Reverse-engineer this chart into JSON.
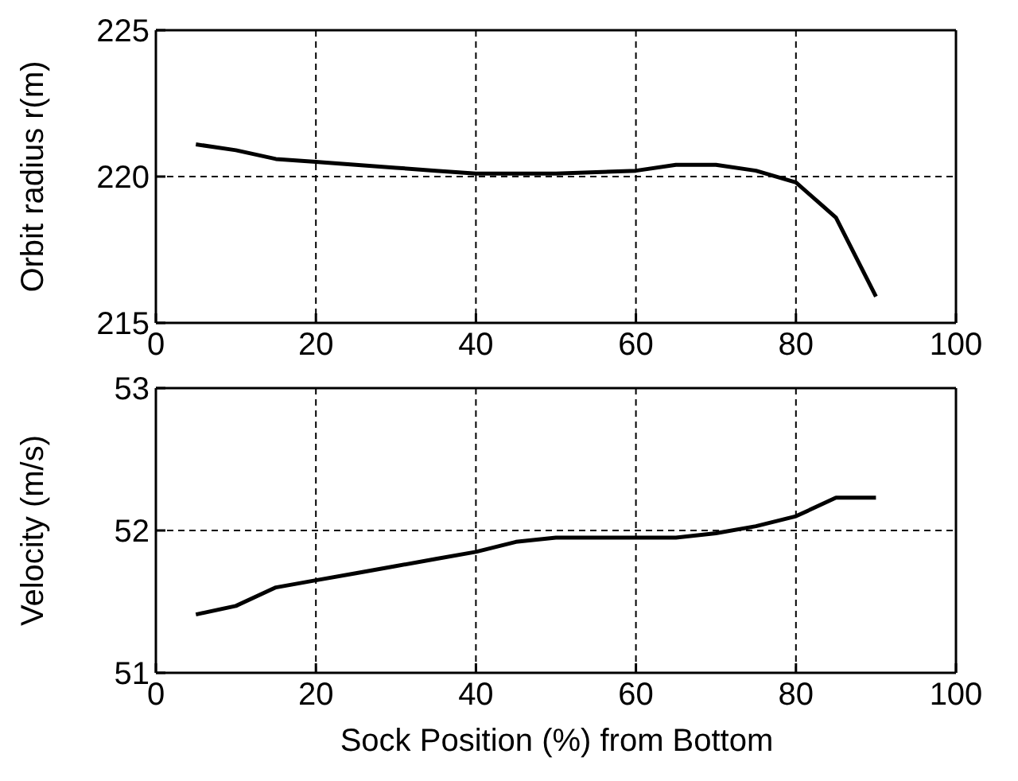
{
  "chart_data": [
    {
      "type": "line",
      "ylabel": "Orbit radius r(m)",
      "x": [
        5,
        10,
        15,
        20,
        25,
        30,
        35,
        40,
        45,
        50,
        55,
        60,
        65,
        70,
        75,
        80,
        85,
        90
      ],
      "series": [
        {
          "color": "#000000",
          "values": [
            221.1,
            220.9,
            220.6,
            220.5,
            220.4,
            220.3,
            220.2,
            220.1,
            220.1,
            220.1,
            220.15,
            220.2,
            220.4,
            220.4,
            220.2,
            219.8,
            218.6,
            215.9
          ]
        }
      ],
      "xlim": [
        0,
        100
      ],
      "xticks": [
        0,
        20,
        40,
        60,
        80,
        100
      ],
      "ylim": [
        215,
        225
      ],
      "yticks": [
        215,
        220,
        225
      ],
      "grid": true,
      "line_style": "solid"
    },
    {
      "type": "line",
      "xlabel": "Sock Position (%) from Bottom",
      "ylabel": "Velocity (m/s)",
      "x": [
        5,
        10,
        15,
        20,
        25,
        30,
        35,
        40,
        45,
        50,
        55,
        60,
        65,
        70,
        75,
        80,
        85,
        90
      ],
      "series": [
        {
          "color": "#000000",
          "values": [
            51.41,
            51.47,
            51.6,
            51.65,
            51.7,
            51.75,
            51.8,
            51.85,
            51.92,
            51.95,
            51.95,
            51.95,
            51.95,
            51.98,
            52.03,
            52.1,
            52.23,
            52.23
          ]
        }
      ],
      "xlim": [
        0,
        100
      ],
      "xticks": [
        0,
        20,
        40,
        60,
        80,
        100
      ],
      "ylim": [
        51,
        53
      ],
      "yticks": [
        51,
        52,
        53
      ],
      "grid": true,
      "line_style": "solid"
    }
  ]
}
